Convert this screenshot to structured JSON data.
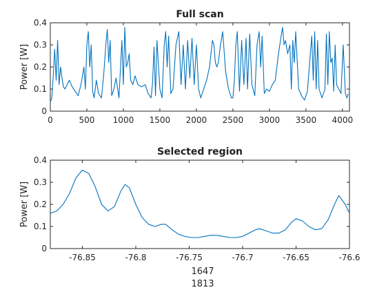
{
  "colors": {
    "line": "#0072BD",
    "axis": "#262626"
  },
  "chart_data": [
    {
      "type": "line",
      "title": "Full scan",
      "xlabel": "",
      "ylabel": "Power [W]",
      "xlim": [
        0,
        4096
      ],
      "ylim": [
        0,
        0.4
      ],
      "xticks": [
        0,
        500,
        1000,
        1500,
        2000,
        2500,
        3000,
        3500,
        4000
      ],
      "xtick_labels": [
        "0",
        "500",
        "1000",
        "1500",
        "2000",
        "2500",
        "3000",
        "3500",
        "4000"
      ],
      "yticks": [
        0,
        0.1,
        0.2,
        0.3,
        0.4
      ],
      "ytick_labels": [
        "0",
        "0.1",
        "0.2",
        "0.3",
        "0.4"
      ],
      "grid": false,
      "series": [
        {
          "x": [
            0,
            20,
            40,
            60,
            80,
            100,
            120,
            140,
            160,
            180,
            200,
            230,
            260,
            300,
            340,
            380,
            420,
            460,
            480,
            500,
            520,
            540,
            560,
            580,
            600,
            630,
            660,
            700,
            730,
            760,
            780,
            800,
            820,
            840,
            870,
            900,
            940,
            980,
            1000,
            1020,
            1040,
            1060,
            1080,
            1100,
            1130,
            1160,
            1200,
            1250,
            1300,
            1340,
            1380,
            1400,
            1420,
            1440,
            1460,
            1500,
            1530,
            1560,
            1580,
            1600,
            1620,
            1650,
            1680,
            1720,
            1760,
            1790,
            1820,
            1850,
            1880,
            1910,
            1940,
            1970,
            2000,
            2030,
            2060,
            2100,
            2140,
            2180,
            2200,
            2220,
            2240,
            2260,
            2280,
            2300,
            2330,
            2360,
            2400,
            2440,
            2480,
            2500,
            2520,
            2540,
            2560,
            2590,
            2620,
            2650,
            2680,
            2700,
            2730,
            2760,
            2800,
            2830,
            2860,
            2880,
            2900,
            2930,
            2960,
            3000,
            3040,
            3080,
            3120,
            3160,
            3180,
            3200,
            3220,
            3250,
            3280,
            3300,
            3320,
            3340,
            3360,
            3400,
            3440,
            3480,
            3520,
            3560,
            3580,
            3600,
            3620,
            3640,
            3660,
            3680,
            3720,
            3760,
            3780,
            3800,
            3820,
            3840,
            3860,
            3880,
            3900,
            3920,
            3950,
            3980,
            4010,
            4040,
            4060,
            4080
          ],
          "y": [
            0.04,
            0.06,
            0.16,
            0.28,
            0.14,
            0.32,
            0.12,
            0.2,
            0.15,
            0.11,
            0.1,
            0.12,
            0.14,
            0.11,
            0.09,
            0.07,
            0.12,
            0.2,
            0.1,
            0.3,
            0.36,
            0.2,
            0.3,
            0.09,
            0.06,
            0.14,
            0.08,
            0.06,
            0.16,
            0.3,
            0.37,
            0.22,
            0.32,
            0.07,
            0.1,
            0.15,
            0.06,
            0.32,
            0.12,
            0.38,
            0.2,
            0.22,
            0.26,
            0.14,
            0.12,
            0.16,
            0.12,
            0.11,
            0.12,
            0.08,
            0.06,
            0.13,
            0.29,
            0.07,
            0.32,
            0.1,
            0.06,
            0.3,
            0.36,
            0.2,
            0.34,
            0.08,
            0.1,
            0.3,
            0.36,
            0.12,
            0.3,
            0.1,
            0.32,
            0.15,
            0.33,
            0.12,
            0.3,
            0.1,
            0.06,
            0.1,
            0.14,
            0.2,
            0.26,
            0.32,
            0.3,
            0.22,
            0.2,
            0.22,
            0.3,
            0.36,
            0.18,
            0.1,
            0.06,
            0.06,
            0.14,
            0.3,
            0.36,
            0.09,
            0.32,
            0.12,
            0.33,
            0.1,
            0.35,
            0.12,
            0.07,
            0.3,
            0.36,
            0.2,
            0.34,
            0.08,
            0.1,
            0.09,
            0.12,
            0.14,
            0.25,
            0.34,
            0.38,
            0.3,
            0.32,
            0.26,
            0.3,
            0.1,
            0.32,
            0.22,
            0.36,
            0.1,
            0.07,
            0.05,
            0.09,
            0.26,
            0.34,
            0.14,
            0.36,
            0.1,
            0.32,
            0.1,
            0.06,
            0.1,
            0.35,
            0.12,
            0.36,
            0.22,
            0.24,
            0.09,
            0.3,
            0.12,
            0.1,
            0.08,
            0.3,
            0.08,
            0.06,
            0.08
          ]
        }
      ]
    },
    {
      "type": "line",
      "title": "Selected region",
      "xlabel": "",
      "ylabel": "Power [W]",
      "xlim": [
        -76.88,
        -76.6
      ],
      "ylim": [
        0,
        0.4
      ],
      "xticks": [
        -76.85,
        -76.8,
        -76.75,
        -76.7,
        -76.65,
        -76.6
      ],
      "xtick_labels": [
        "-76.85",
        "-76.8",
        "-76.75",
        "-76.7",
        "-76.65",
        "-76.6"
      ],
      "yticks": [
        0,
        0.1,
        0.2,
        0.3,
        0.4
      ],
      "ytick_labels": [
        "0",
        "0.1",
        "0.2",
        "0.3",
        "0.4"
      ],
      "grid": false,
      "series": [
        {
          "x": [
            -76.88,
            -76.874,
            -76.868,
            -76.862,
            -76.856,
            -76.85,
            -76.844,
            -76.838,
            -76.832,
            -76.826,
            -76.82,
            -76.814,
            -76.81,
            -76.806,
            -76.8,
            -76.794,
            -76.788,
            -76.782,
            -76.776,
            -76.772,
            -76.766,
            -76.76,
            -76.754,
            -76.748,
            -76.742,
            -76.736,
            -76.73,
            -76.724,
            -76.718,
            -76.712,
            -76.706,
            -76.7,
            -76.694,
            -76.688,
            -76.684,
            -76.678,
            -76.672,
            -76.666,
            -76.66,
            -76.654,
            -76.65,
            -76.644,
            -76.638,
            -76.632,
            -76.626,
            -76.62,
            -76.614,
            -76.61,
            -76.604,
            -76.6
          ],
          "y": [
            0.16,
            0.17,
            0.2,
            0.25,
            0.32,
            0.355,
            0.34,
            0.28,
            0.2,
            0.17,
            0.19,
            0.26,
            0.29,
            0.275,
            0.2,
            0.14,
            0.11,
            0.1,
            0.11,
            0.11,
            0.085,
            0.065,
            0.055,
            0.05,
            0.05,
            0.055,
            0.06,
            0.06,
            0.055,
            0.05,
            0.05,
            0.055,
            0.07,
            0.085,
            0.09,
            0.08,
            0.07,
            0.07,
            0.085,
            0.12,
            0.135,
            0.125,
            0.1,
            0.085,
            0.09,
            0.13,
            0.2,
            0.24,
            0.2,
            0.16
          ]
        }
      ]
    }
  ],
  "extra_labels": [
    "1647",
    "1813"
  ]
}
